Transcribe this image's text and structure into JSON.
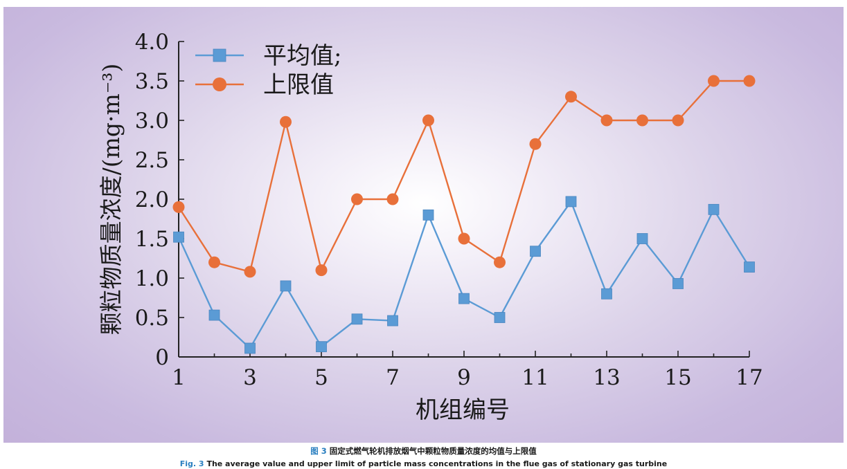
{
  "chart_data": {
    "type": "line",
    "title": "",
    "xlabel": "机组编号",
    "ylabel": "颗粒物质量浓度/(mg·m⁻³)",
    "x": [
      1,
      2,
      3,
      4,
      5,
      6,
      7,
      8,
      9,
      10,
      11,
      12,
      13,
      14,
      15,
      16,
      17
    ],
    "x_ticks": [
      "1",
      "3",
      "5",
      "7",
      "9",
      "11",
      "13",
      "15",
      "17"
    ],
    "y_ticks": [
      "0",
      "0.5",
      "1.0",
      "1.5",
      "2.0",
      "2.5",
      "3.0",
      "3.5",
      "4.0"
    ],
    "xlim": [
      1,
      17
    ],
    "ylim": [
      0,
      4.0
    ],
    "grid": false,
    "legend_position": "top-left",
    "series": [
      {
        "name": "平均值;",
        "color": "#5b9bd5",
        "marker": "square",
        "values": [
          1.52,
          0.53,
          0.11,
          0.9,
          0.13,
          0.48,
          0.46,
          1.8,
          0.74,
          0.5,
          1.34,
          1.97,
          0.8,
          1.5,
          0.93,
          1.87,
          1.14
        ]
      },
      {
        "name": "上限值",
        "color": "#e8703a",
        "marker": "circle",
        "values": [
          1.9,
          1.2,
          1.08,
          2.98,
          1.1,
          2.0,
          2.0,
          3.0,
          1.5,
          1.2,
          2.7,
          3.3,
          3.0,
          3.0,
          3.0,
          3.5,
          3.5
        ]
      }
    ]
  },
  "caption": {
    "zh_fig": "图 3",
    "zh_text": "固定式燃气轮机排放烟气中颗粒物质量浓度的均值与上限值",
    "en_fig": "Fig. 3",
    "en_text": "The average value and upper limit of particle mass concentrations in the flue gas of stationary gas turbine"
  }
}
